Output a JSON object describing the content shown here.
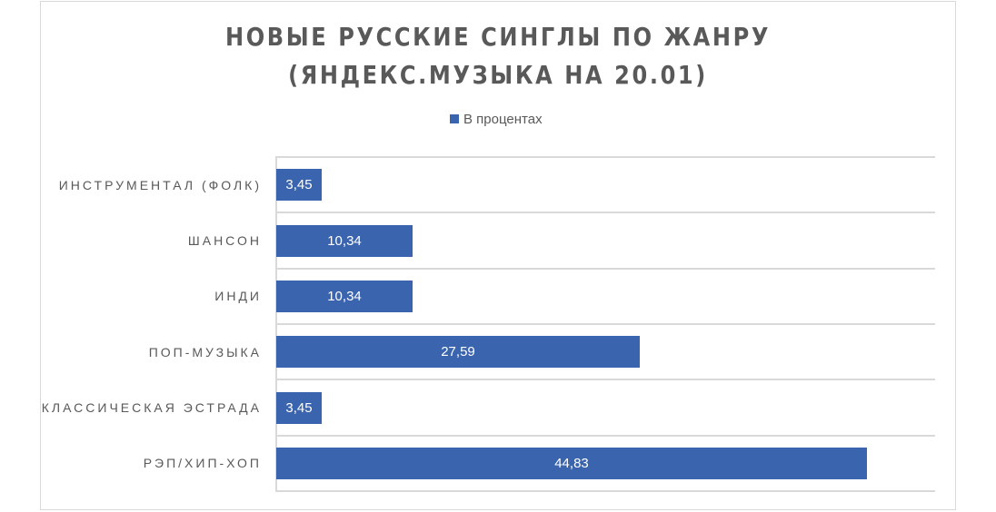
{
  "chart_data": {
    "type": "bar",
    "orientation": "horizontal",
    "title": "НОВЫЕ РУССКИЕ СИНГЛЫ ПО ЖАНРУ (ЯНДЕКС.МУЗЫКА НА 20.01)",
    "title_lines": [
      "НОВЫЕ РУССКИЕ СИНГЛЫ ПО ЖАНРУ",
      "(ЯНДЕКС.МУЗЫКА НА 20.01)"
    ],
    "xlabel": "",
    "ylabel": "",
    "categories": [
      "ИНСТРУМЕНТАЛ (ФОЛК)",
      "ШАНСОН",
      "ИНДИ",
      "ПОП-МУЗЫКА",
      "КЛАССИЧЕСКАЯ ЭСТРАДА",
      "РЭП/ХИП-ХОП"
    ],
    "series": [
      {
        "name": "В процентах",
        "color": "#3a64ad",
        "values": [
          3.45,
          10.34,
          10.34,
          27.59,
          3.45,
          44.83
        ]
      }
    ],
    "data_labels": [
      "3,45",
      "10,34",
      "10,34",
      "27,59",
      "3,45",
      "44,83"
    ],
    "xlim": [
      0,
      50
    ],
    "grid": true,
    "legend_position": "top",
    "value_axis_visible": false
  },
  "legend": {
    "label": "В процентах",
    "color": "#3a64ad"
  }
}
